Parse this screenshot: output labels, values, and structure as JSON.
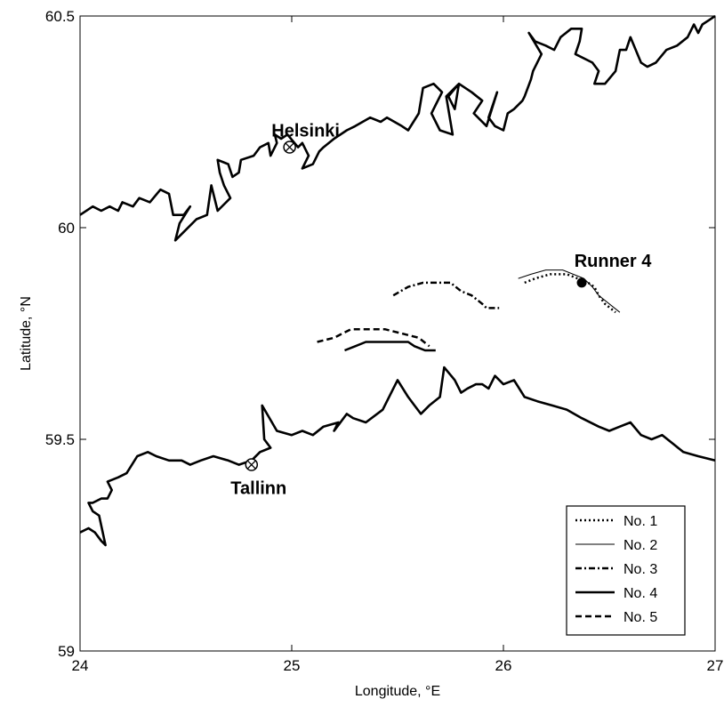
{
  "chart_data": {
    "type": "line",
    "xlabel": "Longitude, °E",
    "ylabel": "Latitude, °N",
    "xlim": [
      24,
      27
    ],
    "ylim": [
      59,
      60.5
    ],
    "xticks": [
      "24",
      "25",
      "26",
      "27"
    ],
    "yticks": [
      "59",
      "59.5",
      "60",
      "60.5"
    ],
    "grid": false,
    "legend_position": "bottom-right",
    "coastlines": {
      "north": [
        [
          24.0,
          60.03
        ],
        [
          24.06,
          60.05
        ],
        [
          24.1,
          60.04
        ],
        [
          24.14,
          60.05
        ],
        [
          24.18,
          60.04
        ],
        [
          24.2,
          60.06
        ],
        [
          24.25,
          60.05
        ],
        [
          24.28,
          60.07
        ],
        [
          24.33,
          60.06
        ],
        [
          24.38,
          60.09
        ],
        [
          24.42,
          60.08
        ],
        [
          24.44,
          60.03
        ],
        [
          24.49,
          60.03
        ],
        [
          24.52,
          60.05
        ],
        [
          24.47,
          60.01
        ],
        [
          24.45,
          59.97
        ],
        [
          24.49,
          59.99
        ],
        [
          24.55,
          60.02
        ],
        [
          24.6,
          60.03
        ],
        [
          24.62,
          60.1
        ],
        [
          24.65,
          60.04
        ],
        [
          24.71,
          60.07
        ],
        [
          24.68,
          60.1
        ],
        [
          24.66,
          60.13
        ],
        [
          24.65,
          60.16
        ],
        [
          24.7,
          60.15
        ],
        [
          24.72,
          60.12
        ],
        [
          24.75,
          60.13
        ],
        [
          24.76,
          60.16
        ],
        [
          24.82,
          60.17
        ],
        [
          24.85,
          60.19
        ],
        [
          24.89,
          60.2
        ],
        [
          24.9,
          60.17
        ],
        [
          24.93,
          60.2
        ],
        [
          24.92,
          60.22
        ],
        [
          24.95,
          60.21
        ],
        [
          24.98,
          60.22
        ],
        [
          25.03,
          60.19
        ],
        [
          25.05,
          60.2
        ],
        [
          25.08,
          60.17
        ],
        [
          25.05,
          60.14
        ],
        [
          25.1,
          60.15
        ],
        [
          25.13,
          60.18
        ],
        [
          25.15,
          60.19
        ],
        [
          25.2,
          60.21
        ],
        [
          25.26,
          60.23
        ],
        [
          25.3,
          60.24
        ],
        [
          25.37,
          60.26
        ],
        [
          25.42,
          60.25
        ],
        [
          25.45,
          60.26
        ],
        [
          25.52,
          60.24
        ],
        [
          25.55,
          60.23
        ],
        [
          25.6,
          60.27
        ],
        [
          25.62,
          60.33
        ],
        [
          25.67,
          60.34
        ],
        [
          25.71,
          60.32
        ],
        [
          25.68,
          60.29
        ],
        [
          25.66,
          60.27
        ],
        [
          25.7,
          60.23
        ],
        [
          25.76,
          60.22
        ],
        [
          25.73,
          60.31
        ],
        [
          25.79,
          60.34
        ],
        [
          25.77,
          60.28
        ],
        [
          25.74,
          60.31
        ],
        [
          25.79,
          60.34
        ],
        [
          25.85,
          60.32
        ],
        [
          25.9,
          60.3
        ],
        [
          25.86,
          60.27
        ],
        [
          25.92,
          60.24
        ],
        [
          25.97,
          60.32
        ],
        [
          25.93,
          60.26
        ],
        [
          25.96,
          60.24
        ],
        [
          26.0,
          60.23
        ],
        [
          26.02,
          60.27
        ],
        [
          26.05,
          60.28
        ],
        [
          26.09,
          60.3
        ],
        [
          26.1,
          60.31
        ],
        [
          26.13,
          60.35
        ],
        [
          26.14,
          60.37
        ],
        [
          26.18,
          60.41
        ],
        [
          26.12,
          60.46
        ],
        [
          26.15,
          60.44
        ],
        [
          26.2,
          60.43
        ],
        [
          26.24,
          60.42
        ],
        [
          26.27,
          60.45
        ],
        [
          26.32,
          60.47
        ],
        [
          26.37,
          60.47
        ],
        [
          26.36,
          60.44
        ],
        [
          26.34,
          60.41
        ],
        [
          26.42,
          60.39
        ],
        [
          26.45,
          60.37
        ],
        [
          26.43,
          60.34
        ],
        [
          26.48,
          60.34
        ],
        [
          26.53,
          60.37
        ],
        [
          26.55,
          60.42
        ],
        [
          26.58,
          60.42
        ],
        [
          26.6,
          60.45
        ],
        [
          26.65,
          60.39
        ],
        [
          26.68,
          60.38
        ],
        [
          26.72,
          60.39
        ],
        [
          26.77,
          60.42
        ],
        [
          26.82,
          60.43
        ],
        [
          26.87,
          60.45
        ],
        [
          26.9,
          60.48
        ],
        [
          26.92,
          60.46
        ],
        [
          26.94,
          60.48
        ],
        [
          26.97,
          60.49
        ],
        [
          27.0,
          60.5
        ]
      ],
      "south": [
        [
          24.0,
          59.28
        ],
        [
          24.04,
          59.29
        ],
        [
          24.07,
          59.28
        ],
        [
          24.1,
          59.26
        ],
        [
          24.12,
          59.25
        ],
        [
          24.09,
          59.32
        ],
        [
          24.06,
          59.33
        ],
        [
          24.04,
          59.35
        ],
        [
          24.06,
          59.35
        ],
        [
          24.1,
          59.36
        ],
        [
          24.13,
          59.36
        ],
        [
          24.15,
          59.38
        ],
        [
          24.13,
          59.4
        ],
        [
          24.18,
          59.41
        ],
        [
          24.22,
          59.42
        ],
        [
          24.27,
          59.46
        ],
        [
          24.32,
          59.47
        ],
        [
          24.36,
          59.46
        ],
        [
          24.42,
          59.45
        ],
        [
          24.48,
          59.45
        ],
        [
          24.52,
          59.44
        ],
        [
          24.57,
          59.45
        ],
        [
          24.63,
          59.46
        ],
        [
          24.7,
          59.45
        ],
        [
          24.75,
          59.44
        ],
        [
          24.81,
          59.45
        ],
        [
          24.85,
          59.47
        ],
        [
          24.9,
          59.48
        ],
        [
          24.87,
          59.5
        ],
        [
          24.86,
          59.58
        ],
        [
          24.93,
          59.52
        ],
        [
          25.0,
          59.51
        ],
        [
          25.05,
          59.52
        ],
        [
          25.1,
          59.51
        ],
        [
          25.15,
          59.53
        ],
        [
          25.22,
          59.54
        ],
        [
          25.2,
          59.52
        ],
        [
          25.26,
          59.56
        ],
        [
          25.29,
          59.55
        ],
        [
          25.35,
          59.54
        ],
        [
          25.43,
          59.57
        ],
        [
          25.48,
          59.62
        ],
        [
          25.5,
          59.64
        ],
        [
          25.55,
          59.6
        ],
        [
          25.58,
          59.58
        ],
        [
          25.61,
          59.56
        ],
        [
          25.65,
          59.58
        ],
        [
          25.7,
          59.6
        ],
        [
          25.72,
          59.67
        ],
        [
          25.77,
          59.64
        ],
        [
          25.8,
          59.61
        ],
        [
          25.83,
          59.62
        ],
        [
          25.87,
          59.63
        ],
        [
          25.9,
          59.63
        ],
        [
          25.93,
          59.62
        ],
        [
          25.96,
          59.65
        ],
        [
          26.0,
          59.63
        ],
        [
          26.05,
          59.64
        ],
        [
          26.1,
          59.6
        ],
        [
          26.16,
          59.59
        ],
        [
          26.23,
          59.58
        ],
        [
          26.3,
          59.57
        ],
        [
          26.37,
          59.55
        ],
        [
          26.45,
          59.53
        ],
        [
          26.5,
          59.52
        ],
        [
          26.55,
          59.53
        ],
        [
          26.6,
          59.54
        ],
        [
          26.65,
          59.51
        ],
        [
          26.7,
          59.5
        ],
        [
          26.75,
          59.51
        ],
        [
          26.8,
          59.49
        ],
        [
          26.85,
          59.47
        ],
        [
          26.92,
          59.46
        ],
        [
          27.0,
          59.45
        ]
      ]
    },
    "places": [
      {
        "name": "Helsinki",
        "lon": 24.99,
        "lat": 60.19
      },
      {
        "name": "Tallinn",
        "lon": 24.81,
        "lat": 59.44
      }
    ],
    "marker": {
      "label": "Runner 4",
      "lon": 26.37,
      "lat": 59.87
    },
    "series": [
      {
        "name": "No. 1",
        "style": "dotted",
        "segments": [
          [
            [
              26.1,
              59.87
            ],
            [
              26.15,
              59.88
            ],
            [
              26.22,
              59.89
            ],
            [
              26.3,
              59.89
            ],
            [
              26.35,
              59.88
            ],
            [
              26.4,
              59.87
            ],
            [
              26.43,
              59.86
            ],
            [
              26.45,
              59.84
            ],
            [
              26.48,
              59.82
            ],
            [
              26.53,
              59.8
            ]
          ]
        ]
      },
      {
        "name": "No. 2",
        "style": "thin",
        "segments": [
          [
            [
              26.07,
              59.88
            ],
            [
              26.13,
              59.89
            ],
            [
              26.2,
              59.9
            ],
            [
              26.28,
              59.9
            ],
            [
              26.33,
              59.89
            ],
            [
              26.38,
              59.88
            ],
            [
              26.42,
              59.86
            ],
            [
              26.45,
              59.84
            ],
            [
              26.5,
              59.82
            ],
            [
              26.55,
              59.8
            ]
          ]
        ]
      },
      {
        "name": "No. 3",
        "style": "dashdot",
        "segments": [
          [
            [
              25.48,
              59.84
            ],
            [
              25.55,
              59.86
            ],
            [
              25.62,
              59.87
            ],
            [
              25.68,
              59.87
            ],
            [
              25.75,
              59.87
            ],
            [
              25.8,
              59.85
            ],
            [
              25.85,
              59.84
            ],
            [
              25.9,
              59.82
            ],
            [
              25.92,
              59.81
            ],
            [
              25.98,
              59.81
            ]
          ]
        ]
      },
      {
        "name": "No. 4",
        "style": "solid",
        "segments": [
          [
            [
              25.25,
              59.71
            ],
            [
              25.3,
              59.72
            ],
            [
              25.35,
              59.73
            ],
            [
              25.42,
              59.73
            ],
            [
              25.48,
              59.73
            ],
            [
              25.55,
              59.73
            ],
            [
              25.58,
              59.72
            ],
            [
              25.63,
              59.71
            ],
            [
              25.68,
              59.71
            ]
          ]
        ]
      },
      {
        "name": "No. 5",
        "style": "dashed",
        "segments": [
          [
            [
              25.12,
              59.73
            ],
            [
              25.2,
              59.74
            ],
            [
              25.28,
              59.76
            ],
            [
              25.36,
              59.76
            ],
            [
              25.44,
              59.76
            ],
            [
              25.52,
              59.75
            ],
            [
              25.6,
              59.74
            ],
            [
              25.65,
              59.72
            ]
          ]
        ]
      }
    ]
  }
}
